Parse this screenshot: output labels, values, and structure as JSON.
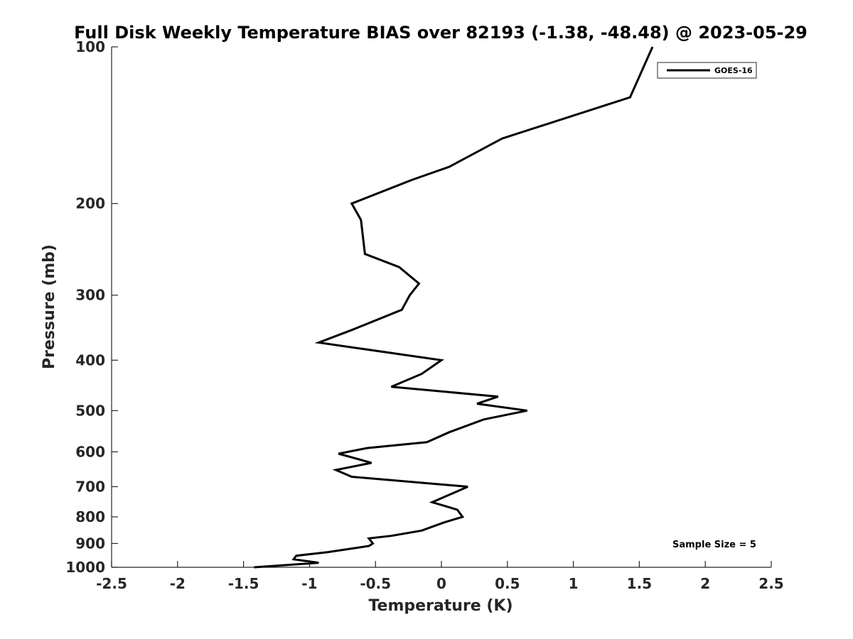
{
  "chart_data": {
    "type": "line",
    "title": "Full Disk Weekly Temperature BIAS over 82193 (-1.38, -48.48) @ 2023-05-29",
    "xlabel": "Temperature (K)",
    "ylabel": "Pressure (mb)",
    "xlim": [
      -2.5,
      2.5
    ],
    "ylim": [
      100,
      1000
    ],
    "y_scale": "log",
    "y_reversed": true,
    "x_ticks": [
      -2.5,
      -2,
      -1.5,
      -1,
      -0.5,
      0,
      0.5,
      1,
      1.5,
      2,
      2.5
    ],
    "x_tick_labels": [
      "-2.5",
      "-2",
      "-1.5",
      "-1",
      "-0.5",
      "0",
      "0.5",
      "1",
      "1.5",
      "2",
      "2.5"
    ],
    "y_ticks": [
      100,
      200,
      300,
      400,
      500,
      600,
      700,
      800,
      900,
      1000
    ],
    "y_tick_labels": [
      "100",
      "200",
      "300",
      "400",
      "500",
      "600",
      "700",
      "800",
      "900",
      "1000"
    ],
    "grid": false,
    "legend_position": "top-right",
    "annotation": "Sample Size = 5",
    "line_color": "#000000",
    "series": [
      {
        "name": "GOES-16",
        "points": [
          {
            "x": 1.6,
            "p": 100
          },
          {
            "x": 1.43,
            "p": 125
          },
          {
            "x": 0.46,
            "p": 150
          },
          {
            "x": 0.06,
            "p": 170
          },
          {
            "x": -0.22,
            "p": 180
          },
          {
            "x": -0.68,
            "p": 200
          },
          {
            "x": -0.61,
            "p": 215
          },
          {
            "x": -0.58,
            "p": 250
          },
          {
            "x": -0.32,
            "p": 265
          },
          {
            "x": -0.17,
            "p": 285
          },
          {
            "x": -0.24,
            "p": 300
          },
          {
            "x": -0.3,
            "p": 320
          },
          {
            "x": -0.68,
            "p": 350
          },
          {
            "x": -0.93,
            "p": 370
          },
          {
            "x": 0.0,
            "p": 400
          },
          {
            "x": -0.15,
            "p": 425
          },
          {
            "x": -0.38,
            "p": 450
          },
          {
            "x": 0.43,
            "p": 470
          },
          {
            "x": 0.27,
            "p": 485
          },
          {
            "x": 0.65,
            "p": 500
          },
          {
            "x": 0.32,
            "p": 520
          },
          {
            "x": 0.06,
            "p": 550
          },
          {
            "x": -0.11,
            "p": 575
          },
          {
            "x": -0.56,
            "p": 590
          },
          {
            "x": -0.78,
            "p": 605
          },
          {
            "x": -0.53,
            "p": 630
          },
          {
            "x": -0.8,
            "p": 650
          },
          {
            "x": -0.68,
            "p": 670
          },
          {
            "x": 0.2,
            "p": 700
          },
          {
            "x": -0.07,
            "p": 750
          },
          {
            "x": 0.12,
            "p": 775
          },
          {
            "x": 0.16,
            "p": 800
          },
          {
            "x": 0.02,
            "p": 820
          },
          {
            "x": -0.15,
            "p": 850
          },
          {
            "x": -0.38,
            "p": 870
          },
          {
            "x": -0.55,
            "p": 880
          },
          {
            "x": -0.52,
            "p": 900
          },
          {
            "x": -0.55,
            "p": 910
          },
          {
            "x": -0.86,
            "p": 935
          },
          {
            "x": -1.1,
            "p": 950
          },
          {
            "x": -1.12,
            "p": 965
          },
          {
            "x": -0.93,
            "p": 980
          },
          {
            "x": -1.42,
            "p": 1000
          }
        ]
      }
    ]
  }
}
